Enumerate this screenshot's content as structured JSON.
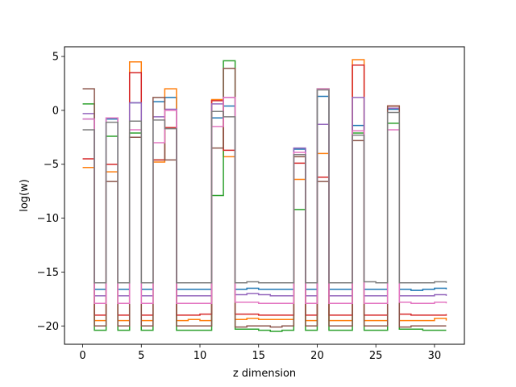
{
  "chart_data": {
    "type": "line",
    "drawstyle": "steps-post",
    "xlabel": "z dimension",
    "ylabel": "log(w)",
    "xlim": [
      -1.55,
      32.55
    ],
    "ylim": [
      -21.7,
      5.9
    ],
    "xticks": [
      0,
      5,
      10,
      15,
      20,
      25,
      30
    ],
    "yticks": [
      5,
      0,
      -5,
      -10,
      -15,
      -20
    ],
    "grid": false,
    "legend": "none",
    "x": [
      0,
      1,
      2,
      3,
      4,
      5,
      6,
      7,
      8,
      9,
      10,
      11,
      12,
      13,
      14,
      15,
      16,
      17,
      18,
      19,
      20,
      21,
      22,
      23,
      24,
      25,
      26,
      27,
      28,
      29,
      30,
      31
    ],
    "series": [
      {
        "color": "#1f77b4",
        "values": [
          -0.8,
          -16.6,
          -0.8,
          -16.6,
          0.7,
          -16.6,
          0.8,
          1.2,
          -16.6,
          -16.6,
          -16.6,
          -0.7,
          0.4,
          -16.6,
          -16.5,
          -16.6,
          -16.6,
          -16.6,
          -3.6,
          -16.6,
          1.3,
          -16.6,
          -16.6,
          -1.4,
          -16.6,
          -16.6,
          0.1,
          -16.6,
          -16.7,
          -16.6,
          -16.5,
          -16.6
        ]
      },
      {
        "color": "#ff7f0e",
        "values": [
          -5.3,
          -19.5,
          -5.7,
          -19.5,
          4.5,
          -19.5,
          -4.8,
          2.0,
          -19.5,
          -19.4,
          -19.5,
          1.0,
          -4.3,
          -19.4,
          -19.3,
          -19.4,
          -19.4,
          -19.4,
          -6.4,
          -19.5,
          -4.0,
          -19.5,
          -19.5,
          4.7,
          -19.5,
          -19.5,
          0.4,
          -19.5,
          -19.5,
          -19.5,
          -19.3,
          -19.5
        ]
      },
      {
        "color": "#2ca02c",
        "values": [
          0.6,
          -20.4,
          -2.4,
          -20.4,
          -2.1,
          -20.4,
          -4.6,
          -1.6,
          -20.4,
          -20.4,
          -20.4,
          -7.9,
          4.6,
          -20.3,
          -20.3,
          -20.4,
          -20.5,
          -20.4,
          -9.2,
          -20.4,
          2.0,
          -20.4,
          -20.4,
          -2.1,
          -20.4,
          -20.4,
          -1.2,
          -20.3,
          -20.3,
          -20.4,
          -20.4,
          -20.4
        ]
      },
      {
        "color": "#d62728",
        "values": [
          -4.5,
          -19.0,
          -5.0,
          -19.0,
          3.5,
          -19.0,
          -4.6,
          -1.6,
          -19.0,
          -19.0,
          -18.9,
          0.9,
          -3.7,
          -18.9,
          -18.9,
          -19.0,
          -19.0,
          -19.0,
          -4.9,
          -19.0,
          -6.2,
          -19.0,
          -19.0,
          4.2,
          -19.0,
          -19.0,
          0.4,
          -18.9,
          -19.0,
          -19.0,
          -19.0,
          -18.9
        ]
      },
      {
        "color": "#9467bd",
        "values": [
          -0.3,
          -17.2,
          -0.7,
          -17.2,
          0.7,
          -17.2,
          -0.6,
          0.1,
          -17.2,
          -17.2,
          -17.2,
          0.6,
          1.2,
          -17.1,
          -17.0,
          -17.1,
          -17.2,
          -17.2,
          -3.5,
          -17.2,
          -1.3,
          -17.2,
          -17.2,
          1.2,
          -17.2,
          -17.2,
          0.2,
          -17.2,
          -17.2,
          -17.2,
          -17.1,
          -17.2
        ]
      },
      {
        "color": "#8c564b",
        "values": [
          2.0,
          -20.0,
          -6.6,
          -20.0,
          -2.5,
          -20.0,
          1.2,
          -4.6,
          -20.0,
          -20.0,
          -20.0,
          -3.5,
          3.9,
          -20.1,
          -20.0,
          -20.0,
          -20.1,
          -20.0,
          -4.3,
          -20.0,
          -6.6,
          -20.0,
          -20.0,
          -2.8,
          -20.0,
          -20.0,
          0.4,
          -20.1,
          -20.0,
          -20.0,
          -20.0,
          -20.0
        ]
      },
      {
        "color": "#e377c2",
        "values": [
          -0.8,
          -17.9,
          -0.7,
          -17.9,
          -1.8,
          -17.9,
          -3.0,
          0.0,
          -17.9,
          -17.9,
          -17.9,
          -1.5,
          1.2,
          -17.8,
          -17.8,
          -17.9,
          -17.9,
          -17.9,
          -3.9,
          -17.9,
          2.0,
          -17.9,
          -17.9,
          -1.9,
          -17.9,
          -17.9,
          -1.8,
          -17.8,
          -17.9,
          -17.9,
          -17.8,
          -17.9
        ]
      },
      {
        "color": "#7f7f7f",
        "values": [
          -1.8,
          -16.0,
          -1.1,
          -16.0,
          -1.0,
          -16.0,
          -0.9,
          -1.7,
          -16.0,
          -16.0,
          -16.0,
          -0.1,
          -0.6,
          -16.0,
          -15.9,
          -16.0,
          -16.0,
          -16.0,
          -4.1,
          -16.0,
          1.9,
          -16.0,
          -16.0,
          -2.3,
          -15.9,
          -16.0,
          -0.2,
          -16.0,
          -16.0,
          -16.0,
          -15.9,
          -16.0
        ]
      }
    ]
  }
}
